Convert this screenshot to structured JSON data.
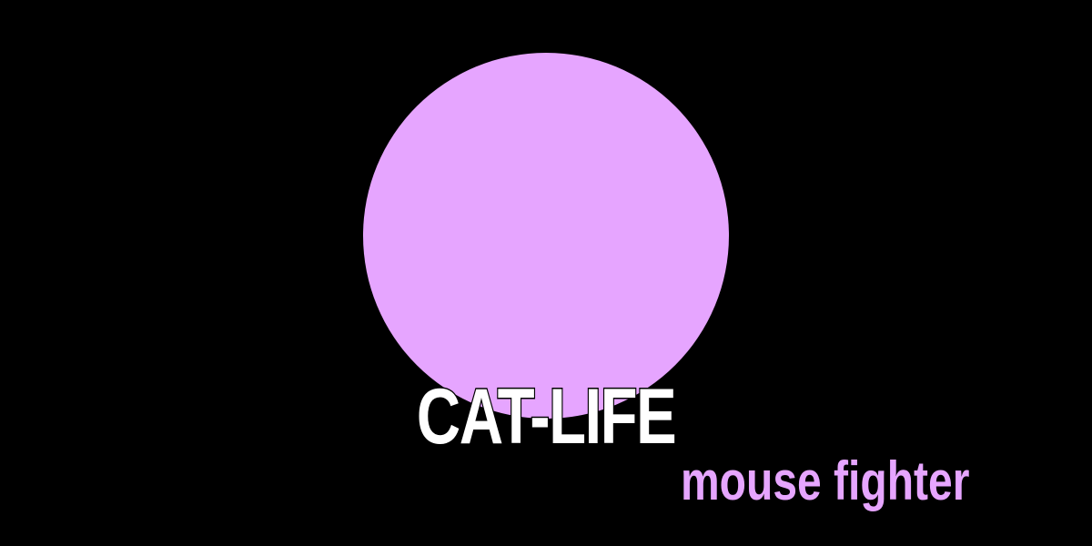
{
  "colors": {
    "background": "#000000",
    "orb": "#e6a5ff",
    "title": "#ffffff",
    "subtitle": "#e6a5ff"
  },
  "title": "CAT-LIFE",
  "subtitle": "mouse fighter"
}
